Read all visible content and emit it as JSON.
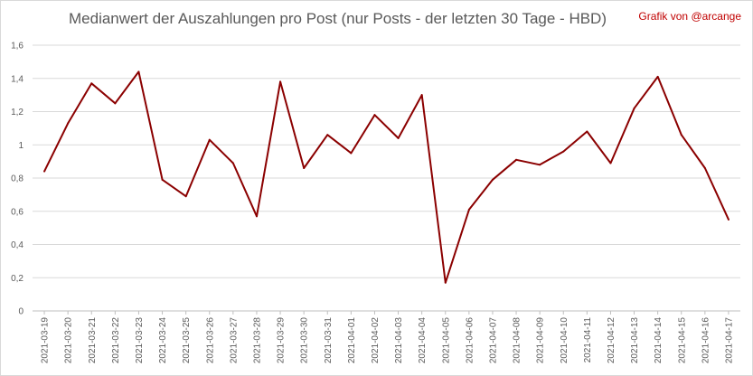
{
  "chart_data": {
    "type": "line",
    "title": "Medianwert der Auszahlungen pro Post (nur Posts - der letzten 30 Tage - HBD)",
    "credit": "Grafik von @arcange",
    "xlabel": "",
    "ylabel": "",
    "ylim": [
      0,
      1.6
    ],
    "yticks": [
      "0",
      "0,2",
      "0,4",
      "0,6",
      "0,8",
      "1",
      "1,2",
      "1,4",
      "1,6"
    ],
    "ytick_values": [
      0,
      0.2,
      0.4,
      0.6,
      0.8,
      1.0,
      1.2,
      1.4,
      1.6
    ],
    "grid": true,
    "legend": "none",
    "line_color": "#8b0000",
    "x": [
      "2021-03-19",
      "2021-03-20",
      "2021-03-21",
      "2021-03-22",
      "2021-03-23",
      "2021-03-24",
      "2021-03-25",
      "2021-03-26",
      "2021-03-27",
      "2021-03-28",
      "2021-03-29",
      "2021-03-30",
      "2021-03-31",
      "2021-04-01",
      "2021-04-02",
      "2021-04-03",
      "2021-04-04",
      "2021-04-05",
      "2021-04-06",
      "2021-04-07",
      "2021-04-08",
      "2021-04-09",
      "2021-04-10",
      "2021-04-11",
      "2021-04-12",
      "2021-04-13",
      "2021-04-14",
      "2021-04-15",
      "2021-04-16",
      "2021-04-17"
    ],
    "values": [
      0.84,
      1.13,
      1.37,
      1.25,
      1.44,
      0.79,
      0.69,
      1.03,
      0.89,
      0.57,
      1.38,
      0.86,
      1.06,
      0.95,
      1.18,
      1.04,
      1.3,
      0.17,
      0.61,
      0.79,
      0.91,
      0.88,
      0.96,
      1.08,
      0.89,
      1.22,
      1.41,
      1.06,
      0.86,
      0.55
    ]
  }
}
